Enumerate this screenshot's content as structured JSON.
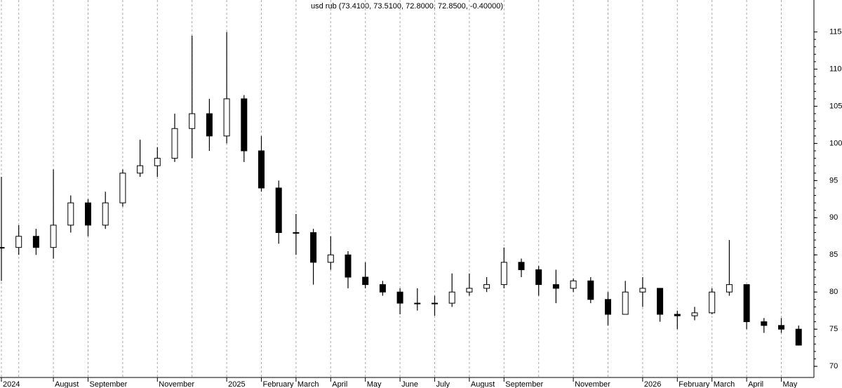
{
  "chart_data": {
    "type": "candlestick",
    "title": "usd rub (73.4100, 73.5100, 72.8000, 72.8500, -0.40000)",
    "categories": [
      "2024",
      null,
      null,
      "August",
      null,
      "September",
      null,
      null,
      null,
      "November",
      null,
      null,
      null,
      "2025",
      null,
      "February",
      null,
      "March",
      null,
      "April",
      null,
      "May",
      null,
      "June",
      null,
      "July",
      null,
      "August",
      null,
      "September",
      null,
      null,
      null,
      "November",
      null,
      null,
      null,
      "2026",
      null,
      "February",
      null,
      "March",
      null,
      "April",
      null,
      "May",
      null
    ],
    "open": [
      86,
      86,
      87.5,
      86,
      89,
      92,
      89,
      92,
      96,
      97,
      98,
      102,
      104,
      101,
      106,
      99,
      94,
      88,
      88,
      84,
      85,
      82,
      81,
      80,
      78.5,
      78.5,
      78.5,
      80,
      80.5,
      81,
      84,
      83,
      81,
      80.5,
      81.5,
      79,
      77,
      80,
      80.5,
      77,
      76.8,
      77.2,
      80,
      81,
      76,
      75.5,
      75
    ],
    "high": [
      95.5,
      89,
      88.5,
      96.5,
      93,
      92.5,
      93.5,
      96.5,
      100.5,
      99.5,
      104,
      114.5,
      106,
      115,
      106.5,
      101,
      95,
      90.5,
      88.5,
      87.5,
      85.5,
      84,
      81.5,
      80.5,
      80.5,
      79.5,
      82.5,
      82.5,
      82,
      86,
      84.5,
      83.5,
      83,
      81.8,
      82,
      80,
      81.5,
      82,
      80.5,
      77.5,
      78,
      80.5,
      87,
      81,
      76.5,
      76.5,
      75.5
    ],
    "low": [
      81.5,
      85,
      85,
      84.5,
      88,
      87.5,
      88.5,
      91.5,
      95.5,
      95.5,
      97.5,
      98,
      99,
      100,
      97.5,
      93.5,
      86.5,
      85,
      81,
      83,
      80.5,
      80.5,
      79.5,
      77,
      77.5,
      76.8,
      78,
      79.5,
      80,
      80.5,
      82,
      79.5,
      78.5,
      80,
      78.5,
      75.5,
      77,
      78,
      76,
      75,
      76.2,
      77,
      79.5,
      75,
      74.5,
      74.5,
      72.8
    ],
    "close": [
      86,
      87.5,
      86,
      89,
      92,
      89,
      92,
      96,
      97,
      98,
      102,
      104,
      101,
      106,
      99,
      94,
      88,
      88,
      84,
      85,
      82,
      81,
      80,
      78.5,
      78.5,
      78.5,
      80,
      80.5,
      81,
      84,
      83,
      81,
      80.5,
      81.5,
      79,
      77,
      80,
      80.5,
      77,
      76.8,
      77.2,
      80,
      81,
      76,
      75.5,
      75,
      72.85
    ],
    "color": "#000000",
    "ylim": [
      68.5,
      119.3
    ],
    "yticks": [
      70,
      75,
      80,
      85,
      90,
      95,
      100,
      105,
      110,
      115
    ],
    "grid": true
  }
}
